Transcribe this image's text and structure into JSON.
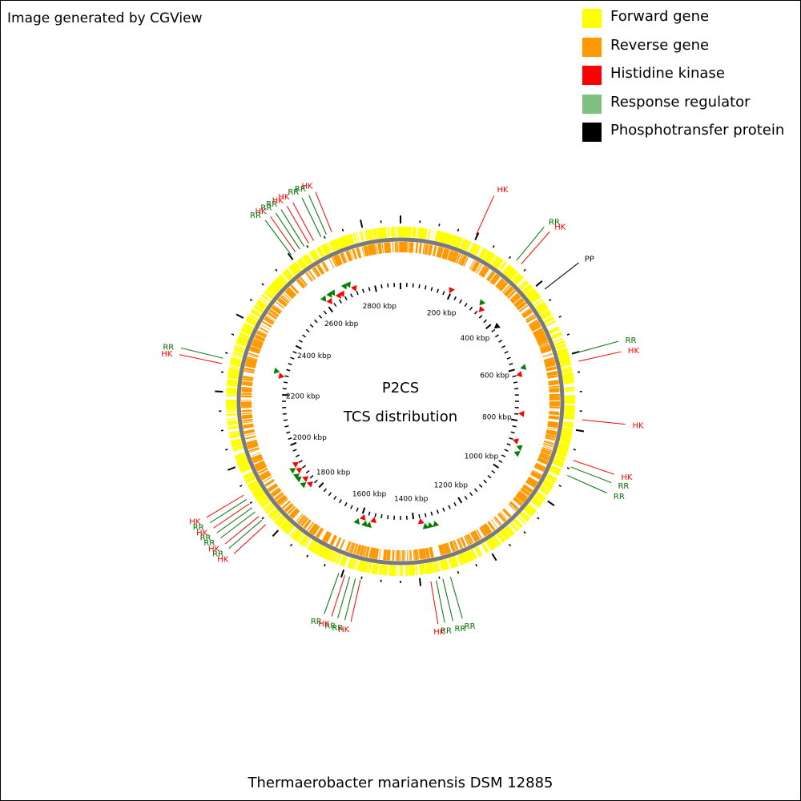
{
  "credit": "Image generated by CGView",
  "center": {
    "line1": "P2CS",
    "line2": "TCS distribution"
  },
  "organism": "Thermaerobacter marianensis DSM 12885",
  "legend": [
    {
      "key": "forward",
      "label": "Forward gene",
      "color": "#ffff00"
    },
    {
      "key": "reverse",
      "label": "Reverse gene",
      "color": "#ff9900"
    },
    {
      "key": "hk",
      "label": "Histidine kinase",
      "color": "#ff0000"
    },
    {
      "key": "rr",
      "label": "Response regulator",
      "color": "#80c080"
    },
    {
      "key": "pp",
      "label": "Phosphotransfer protein",
      "color": "#000000"
    }
  ],
  "scale": {
    "unit": "kbp",
    "labels": [
      "200 kbp",
      "400 kbp",
      "600 kbp",
      "800 kbp",
      "1000 kbp",
      "1200 kbp",
      "1400 kbp",
      "1600 kbp",
      "1800 kbp",
      "2000 kbp",
      "2200 kbp",
      "2400 kbp",
      "2600 kbp",
      "2800 kbp"
    ]
  },
  "features": [
    {
      "type": "HK",
      "label": "HK",
      "kbp": 197
    },
    {
      "type": "RR",
      "label": "RR",
      "kbp": 318
    },
    {
      "type": "HK",
      "label": "HK",
      "kbp": 333
    },
    {
      "type": "PP",
      "label": "PP",
      "kbp": 420
    },
    {
      "type": "RR",
      "label": "RR",
      "kbp": 601
    },
    {
      "type": "HK",
      "label": "HK",
      "kbp": 623
    },
    {
      "type": "HK",
      "label": "HK",
      "kbp": 772
    },
    {
      "type": "HK",
      "label": "HK",
      "kbp": 877
    },
    {
      "type": "RR",
      "label": "RR",
      "kbp": 895
    },
    {
      "type": "RR",
      "label": "RR",
      "kbp": 918
    },
    {
      "type": "RR",
      "label": "RR",
      "kbp": 1322
    },
    {
      "type": "RR",
      "label": "RR",
      "kbp": 1342
    },
    {
      "type": "RR",
      "label": "RR",
      "kbp": 1359
    },
    {
      "type": "HK",
      "label": "HK",
      "kbp": 1373
    },
    {
      "type": "HK",
      "label": "HK",
      "kbp": 1552
    },
    {
      "type": "RR",
      "label": "RR",
      "kbp": 1565
    },
    {
      "type": "RR",
      "label": "RR",
      "kbp": 1580
    },
    {
      "type": "HK",
      "label": "HK",
      "kbp": 1593
    },
    {
      "type": "RR",
      "label": "RR",
      "kbp": 1609
    },
    {
      "type": "HK",
      "label": "HK",
      "kbp": 1833
    },
    {
      "type": "RR",
      "label": "RR",
      "kbp": 1848
    },
    {
      "type": "HK",
      "label": "HK",
      "kbp": 1860
    },
    {
      "type": "RR",
      "label": "RR",
      "kbp": 1875
    },
    {
      "type": "RR",
      "label": "RR",
      "kbp": 1888
    },
    {
      "type": "HK",
      "label": "HK",
      "kbp": 1900
    },
    {
      "type": "RR",
      "label": "RR",
      "kbp": 1913
    },
    {
      "type": "HK",
      "label": "HK",
      "kbp": 1926
    },
    {
      "type": "HK",
      "label": "HK",
      "kbp": 2271
    },
    {
      "type": "RR",
      "label": "RR",
      "kbp": 2285
    },
    {
      "type": "RR",
      "label": "RR",
      "kbp": 2604
    },
    {
      "type": "HK",
      "label": "HK",
      "kbp": 2617
    },
    {
      "type": "RR",
      "label": "RR",
      "kbp": 2630
    },
    {
      "type": "RR",
      "label": "RR",
      "kbp": 2643
    },
    {
      "type": "HK",
      "label": "HK",
      "kbp": 2657
    },
    {
      "type": "HK",
      "label": "HK",
      "kbp": 2671
    },
    {
      "type": "RR",
      "label": "RR",
      "kbp": 2692
    },
    {
      "type": "RR",
      "label": "RR",
      "kbp": 2707
    },
    {
      "type": "HK",
      "label": "HK",
      "kbp": 2722
    }
  ]
}
